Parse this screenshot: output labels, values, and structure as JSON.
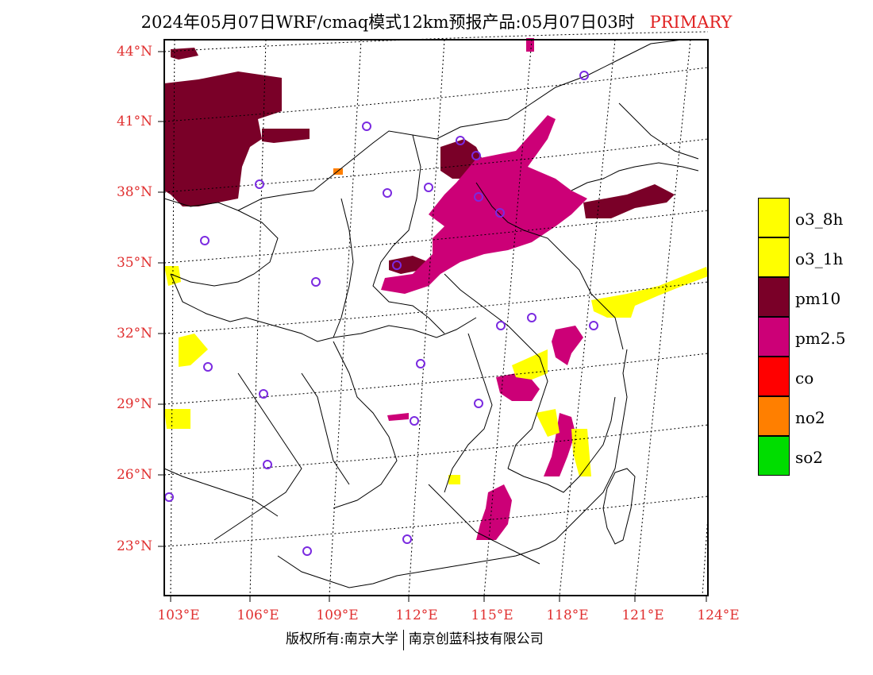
{
  "title": {
    "main": "2024年05月07日WRF/cmaq模式12km预报产品:05月07日03时",
    "tag": "PRIMARY"
  },
  "axes": {
    "lat_labels": [
      "44°N",
      "41°N",
      "38°N",
      "35°N",
      "32°N",
      "29°N",
      "26°N",
      "23°N"
    ],
    "lon_labels": [
      "103°E",
      "106°E",
      "109°E",
      "112°E",
      "115°E",
      "118°E",
      "121°E",
      "124°E"
    ]
  },
  "legend": [
    {
      "label": "o3_8h",
      "color": "#ffff00"
    },
    {
      "label": "o3_1h",
      "color": "#ffff00"
    },
    {
      "label": "pm10",
      "color": "#7a0028"
    },
    {
      "label": "pm2.5",
      "color": "#cc0077"
    },
    {
      "label": "co",
      "color": "#ff0000"
    },
    {
      "label": "no2",
      "color": "#ff7f00"
    },
    {
      "label": "so2",
      "color": "#00dd00"
    }
  ],
  "footer": {
    "left": "版权所有:南京大学",
    "right": "南京创蓝科技有限公司"
  },
  "colors": {
    "pm10": "#7a0028",
    "pm25": "#cc0077",
    "o3": "#ffff00",
    "no2": "#ff7f00",
    "station": "#7a2ae0",
    "axis_label": "#e03030"
  }
}
